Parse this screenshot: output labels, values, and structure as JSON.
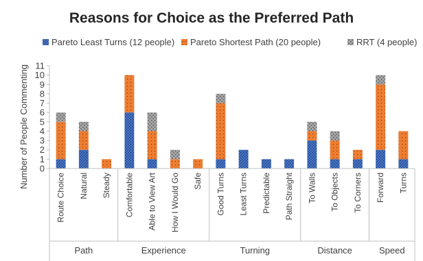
{
  "chart_data": {
    "type": "bar",
    "stacked": true,
    "title": "Reasons for Choice as the Preferred Path",
    "ylabel": "Number of People Commenting",
    "xlabel": "",
    "ylim": [
      0,
      11
    ],
    "yticks": [
      0,
      1,
      2,
      3,
      4,
      5,
      6,
      7,
      8,
      9,
      10,
      11
    ],
    "grid": false,
    "legend_position": "top",
    "categories": [
      "Route Choice",
      "Natural",
      "Steady",
      "Comfortable",
      "Able to View Art",
      "How I Would Go",
      "Safe",
      "Good Turns",
      "Least Turns",
      "Predictable",
      "Path Straight",
      "To Walls",
      "To Objects",
      "To Corners",
      "Forward",
      "Turns"
    ],
    "groups": [
      {
        "label": "Path",
        "count": 3
      },
      {
        "label": "Experience",
        "count": 4
      },
      {
        "label": "Turning",
        "count": 4
      },
      {
        "label": "Distance",
        "count": 3
      },
      {
        "label": "Speed",
        "count": 2
      }
    ],
    "series": [
      {
        "name": "Pareto Least Turns (12 people)",
        "color": "#4472c4",
        "values": [
          1,
          2,
          0,
          6,
          1,
          0,
          0,
          1,
          2,
          1,
          1,
          3,
          1,
          1,
          2,
          1
        ]
      },
      {
        "name": "Pareto Shortest Path (20 people)",
        "color": "#ed7d31",
        "values": [
          4,
          2,
          1,
          4,
          3,
          1,
          1,
          6,
          0,
          0,
          0,
          1,
          2,
          1,
          7,
          3
        ]
      },
      {
        "name": "RRT (4 people)",
        "color": "#a5a5a5",
        "values": [
          1,
          1,
          0,
          0,
          2,
          1,
          0,
          1,
          0,
          0,
          0,
          1,
          1,
          0,
          1,
          0
        ]
      }
    ]
  }
}
